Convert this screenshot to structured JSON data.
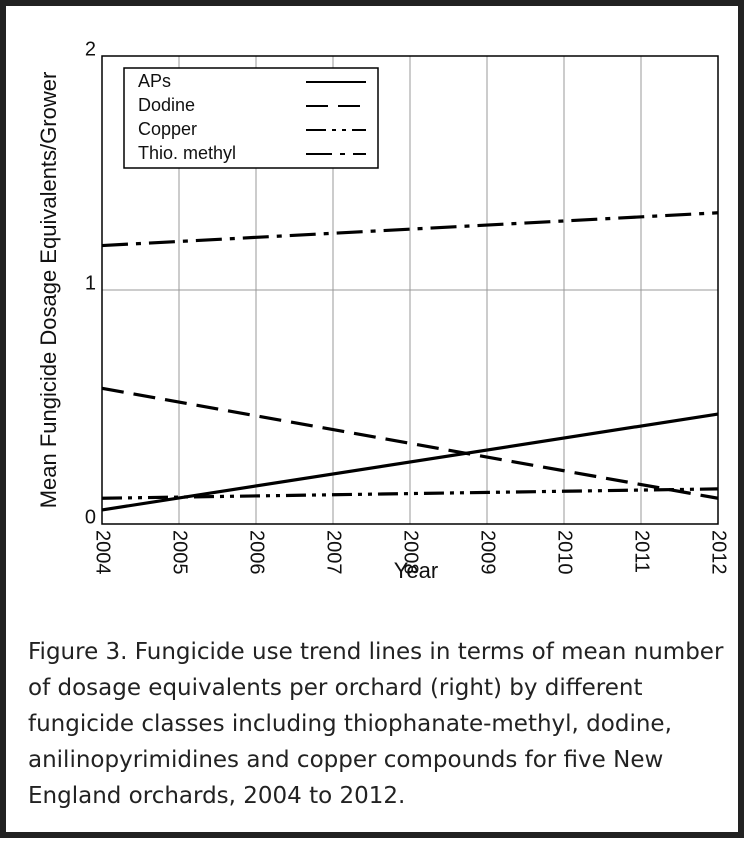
{
  "chart_data": {
    "type": "line",
    "x_label": "Year",
    "y_label": "Mean Fungicide Dosage Equivalents/Grower",
    "x": [
      2004,
      2012
    ],
    "xlim": [
      2004,
      2012
    ],
    "xticks": [
      2004,
      2005,
      2006,
      2007,
      2008,
      2009,
      2010,
      2011,
      2012
    ],
    "ylim": [
      0,
      2
    ],
    "yticks": [
      0,
      1,
      2
    ],
    "grid": true,
    "legend": "upper left",
    "series": [
      {
        "name": "APs",
        "color": "#000000",
        "dash": "solid",
        "values": [
          0.06,
          0.47
        ]
      },
      {
        "name": "Dodine",
        "color": "#000000",
        "dash": "dashed",
        "values": [
          0.58,
          0.11
        ]
      },
      {
        "name": "Copper",
        "color": "#000000",
        "dash": "dashdotdot",
        "values": [
          0.11,
          0.15
        ]
      },
      {
        "name": "Thio. methyl",
        "color": "#000000",
        "dash": "dashdot",
        "values": [
          1.19,
          1.33
        ]
      }
    ],
    "caption": "Figure 3. Fungicide use trend lines in terms of mean number of dosage equivalents per orchard (right) by different fungicide classes including thiophanate-methyl, dodine, anilinopyrimidines and copper compounds for five New England orchards, 2004 to 2012."
  }
}
